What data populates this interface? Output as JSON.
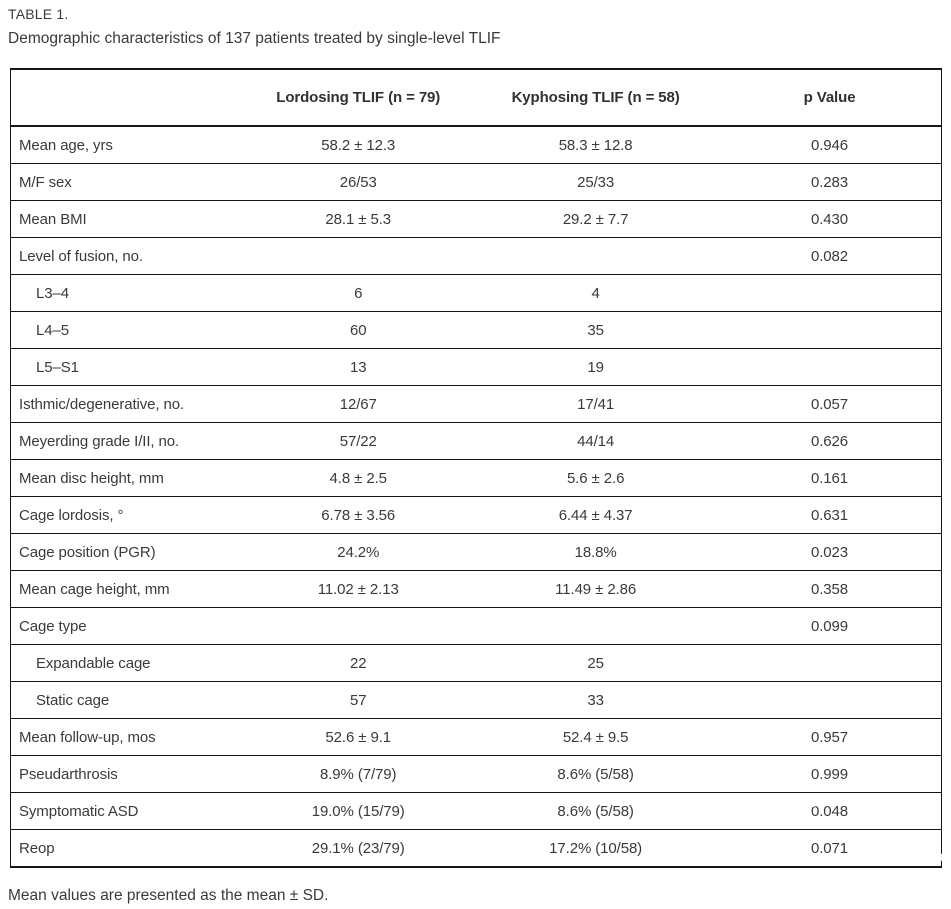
{
  "header": {
    "label": "TABLE 1.",
    "caption": "Demographic characteristics of 137 patients treated by single-level TLIF"
  },
  "table": {
    "columns": [
      "",
      "Lordosing TLIF (n = 79)",
      "Kyphosing TLIF (n = 58)",
      "p Value"
    ],
    "rows": [
      {
        "label": "Mean age, yrs",
        "indent": false,
        "lordosing": "58.2 ± 12.3",
        "kyphosing": "58.3 ± 12.8",
        "p_value": "0.946"
      },
      {
        "label": "M/F sex",
        "indent": false,
        "lordosing": "26/53",
        "kyphosing": "25/33",
        "p_value": "0.283"
      },
      {
        "label": "Mean BMI",
        "indent": false,
        "lordosing": "28.1 ± 5.3",
        "kyphosing": "29.2 ± 7.7",
        "p_value": "0.430"
      },
      {
        "label": "Level of fusion, no.",
        "indent": false,
        "lordosing": "",
        "kyphosing": "",
        "p_value": "0.082"
      },
      {
        "label": "L3–4",
        "indent": true,
        "lordosing": "6",
        "kyphosing": "4",
        "p_value": ""
      },
      {
        "label": "L4–5",
        "indent": true,
        "lordosing": "60",
        "kyphosing": "35",
        "p_value": ""
      },
      {
        "label": "L5–S1",
        "indent": true,
        "lordosing": "13",
        "kyphosing": "19",
        "p_value": ""
      },
      {
        "label": "Isthmic/degenerative, no.",
        "indent": false,
        "lordosing": "12/67",
        "kyphosing": "17/41",
        "p_value": "0.057"
      },
      {
        "label": "Meyerding grade I/II, no.",
        "indent": false,
        "lordosing": "57/22",
        "kyphosing": "44/14",
        "p_value": "0.626"
      },
      {
        "label": "Mean disc height, mm",
        "indent": false,
        "lordosing": "4.8 ± 2.5",
        "kyphosing": "5.6 ± 2.6",
        "p_value": "0.161"
      },
      {
        "label": "Cage lordosis, °",
        "indent": false,
        "lordosing": "6.78 ± 3.56",
        "kyphosing": "6.44 ± 4.37",
        "p_value": "0.631"
      },
      {
        "label": "Cage position (PGR)",
        "indent": false,
        "lordosing": "24.2%",
        "kyphosing": "18.8%",
        "p_value": "0.023"
      },
      {
        "label": "Mean cage height, mm",
        "indent": false,
        "lordosing": "11.02 ± 2.13",
        "kyphosing": "11.49 ± 2.86",
        "p_value": "0.358"
      },
      {
        "label": "Cage type",
        "indent": false,
        "lordosing": "",
        "kyphosing": "",
        "p_value": "0.099"
      },
      {
        "label": "Expandable cage",
        "indent": true,
        "lordosing": "22",
        "kyphosing": "25",
        "p_value": ""
      },
      {
        "label": "Static cage",
        "indent": true,
        "lordosing": "57",
        "kyphosing": "33",
        "p_value": ""
      },
      {
        "label": "Mean follow-up, mos",
        "indent": false,
        "lordosing": "52.6 ± 9.1",
        "kyphosing": "52.4 ± 9.5",
        "p_value": "0.957"
      },
      {
        "label": "Pseudarthrosis",
        "indent": false,
        "lordosing": "8.9% (7/79)",
        "kyphosing": "8.6% (5/58)",
        "p_value": "0.999"
      },
      {
        "label": "Symptomatic ASD",
        "indent": false,
        "lordosing": "19.0% (15/79)",
        "kyphosing": "8.6% (5/58)",
        "p_value": "0.048"
      },
      {
        "label": "Reop",
        "indent": false,
        "lordosing": "29.1% (23/79)",
        "kyphosing": "17.2% (10/58)",
        "p_value": "0.071"
      }
    ]
  },
  "footnote": "Mean values are presented as the mean ± SD.",
  "colors": {
    "text": "#3a3a3a",
    "rule": "#161616",
    "background": "#ffffff"
  }
}
